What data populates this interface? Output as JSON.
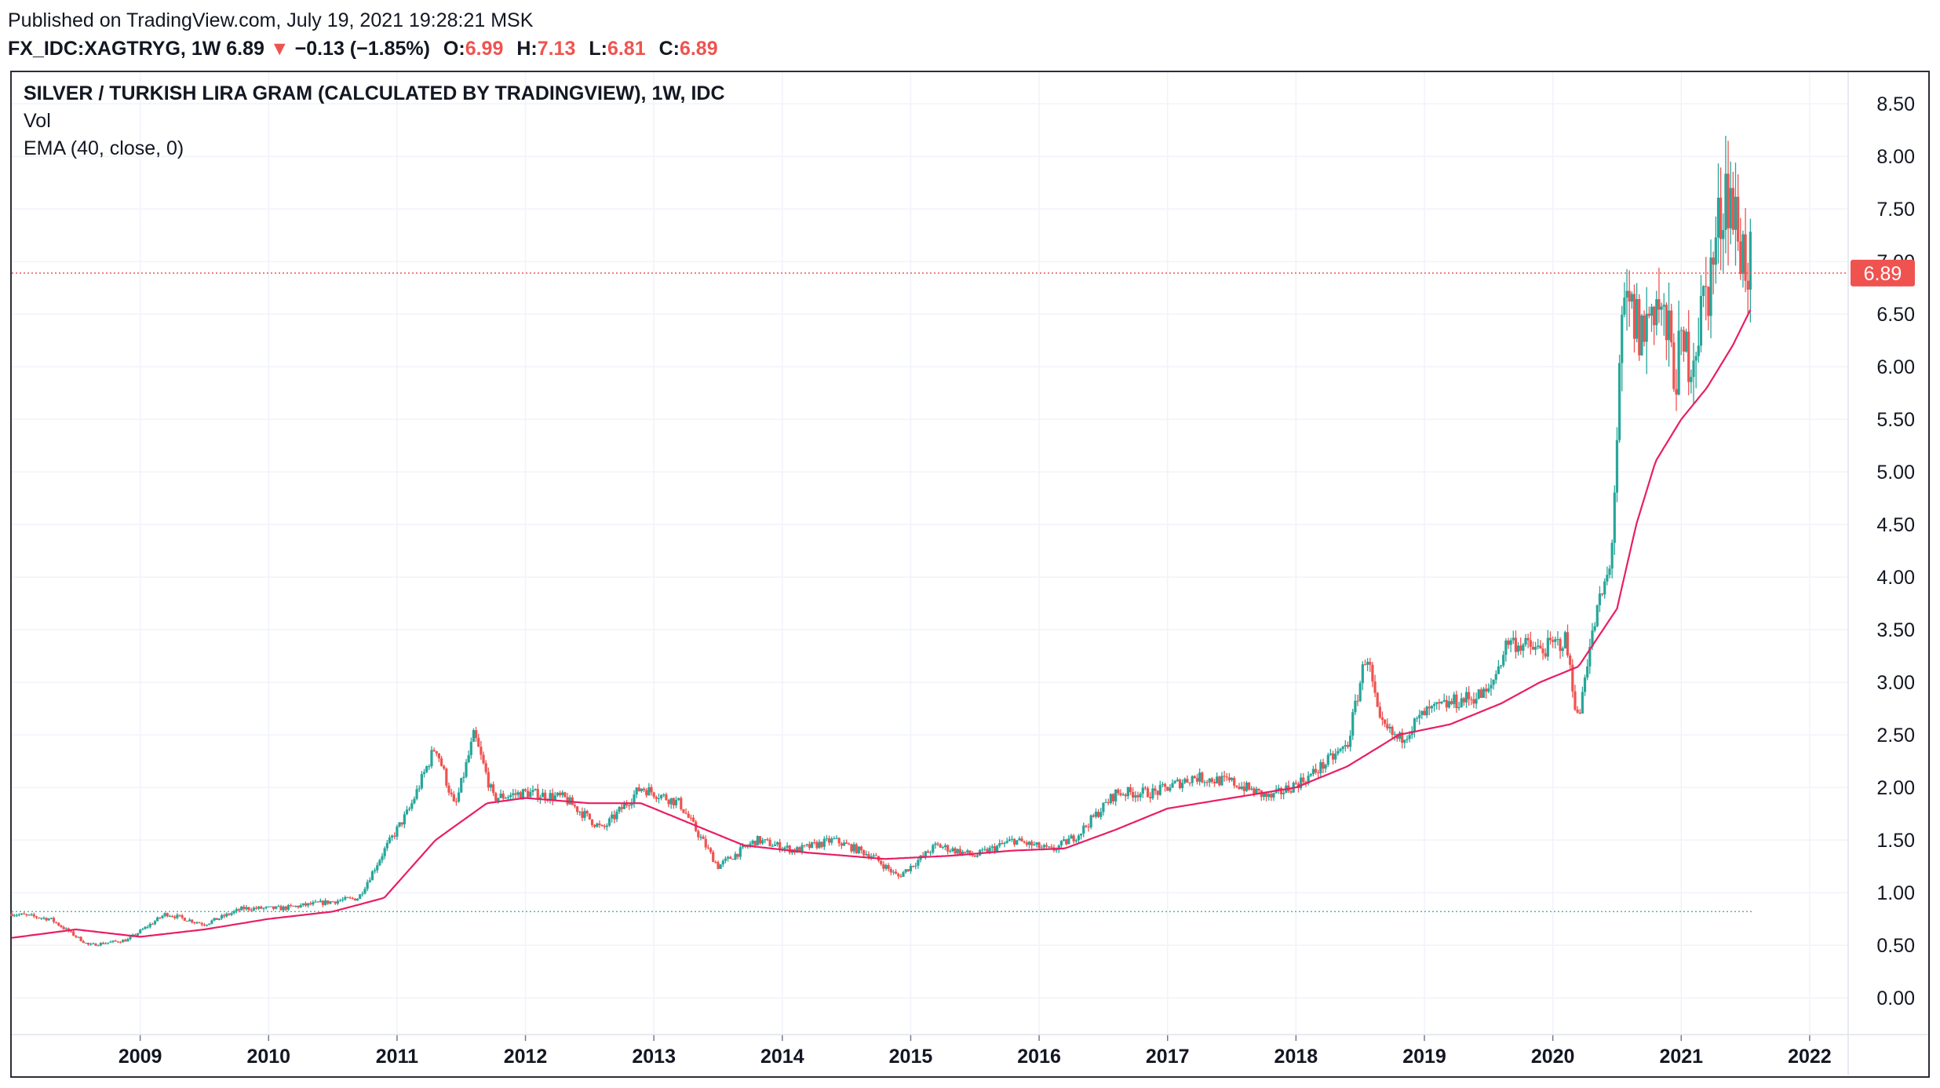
{
  "header": {
    "published": "Published on TradingView.com, July 19, 2021 19:28:21 MSK",
    "symbol": "FX_IDC:XAGTRYG, 1W",
    "last": "6.89",
    "change_arrow": "▼",
    "change": "−0.13 (−1.85%)",
    "open_label": "O:",
    "open": "6.99",
    "high_label": "H:",
    "high": "7.13",
    "low_label": "L:",
    "low": "6.81",
    "close_label": "C:",
    "close": "6.89"
  },
  "legend": {
    "title": "SILVER / TURKISH LIRA GRAM (CALCULATED BY TRADINGVIEW), 1W, IDC",
    "vol": "Vol",
    "ema": "EMA (40, close, 0)"
  },
  "colors": {
    "up": "#26a69a",
    "down": "#ef5350",
    "ema": "#e91e63",
    "grid": "#f0f3fa",
    "last_price": "#ef5350",
    "vol_line": "#26a69a"
  },
  "chart_data": {
    "type": "line",
    "title": "SILVER / TURKISH LIRA GRAM (CALCULATED BY TRADINGVIEW), 1W, IDC",
    "y_ticks": [
      "8.50",
      "8.00",
      "7.50",
      "7.00",
      "6.50",
      "6.00",
      "5.50",
      "5.00",
      "4.50",
      "4.00",
      "3.50",
      "3.00",
      "2.50",
      "2.00",
      "1.50",
      "1.00",
      "0.50",
      "0.00"
    ],
    "x_ticks": [
      "2009",
      "2010",
      "2011",
      "2012",
      "2013",
      "2014",
      "2015",
      "2016",
      "2017",
      "2018",
      "2019",
      "2020",
      "2021",
      "2022"
    ],
    "ylim": [
      -0.35,
      8.8
    ],
    "xlim": [
      2008.0,
      2022.3
    ],
    "grid": true,
    "last_price_label": "6.89",
    "last_price": 6.89,
    "volume_level": 0.82,
    "series": [
      {
        "kind": "price",
        "x": [
          2008.0,
          2008.3,
          2008.6,
          2008.9,
          2009.2,
          2009.5,
          2009.8,
          2010.1,
          2010.4,
          2010.7,
          2010.9,
          2011.1,
          2011.3,
          2011.45,
          2011.6,
          2011.75,
          2012.0,
          2012.3,
          2012.6,
          2012.9,
          2013.2,
          2013.5,
          2013.8,
          2014.1,
          2014.4,
          2014.7,
          2014.9,
          2015.2,
          2015.5,
          2015.8,
          2016.1,
          2016.3,
          2016.6,
          2016.9,
          2017.2,
          2017.5,
          2017.8,
          2018.1,
          2018.4,
          2018.55,
          2018.65,
          2018.8,
          2019.0,
          2019.2,
          2019.5,
          2019.65,
          2019.9,
          2020.1,
          2020.2,
          2020.25,
          2020.35,
          2020.45,
          2020.55,
          2020.6,
          2020.7,
          2020.8,
          2020.95,
          2021.1,
          2021.25,
          2021.35,
          2021.45,
          2021.55
        ],
        "y": [
          0.8,
          0.75,
          0.5,
          0.55,
          0.8,
          0.7,
          0.85,
          0.85,
          0.9,
          0.95,
          1.4,
          1.8,
          2.4,
          1.8,
          2.5,
          1.9,
          1.95,
          1.9,
          1.6,
          2.0,
          1.85,
          1.25,
          1.5,
          1.4,
          1.5,
          1.35,
          1.15,
          1.45,
          1.35,
          1.5,
          1.4,
          1.55,
          1.95,
          1.95,
          2.1,
          2.05,
          1.9,
          2.1,
          2.4,
          3.3,
          2.6,
          2.45,
          2.7,
          2.8,
          2.9,
          3.4,
          3.3,
          3.4,
          2.6,
          3.1,
          3.7,
          4.1,
          6.5,
          6.5,
          6.3,
          6.7,
          6.0,
          6.2,
          7.0,
          7.8,
          7.2,
          6.89
        ]
      },
      {
        "kind": "ema",
        "name": "EMA (40, close, 0)",
        "x": [
          2008.0,
          2008.5,
          2009.0,
          2009.5,
          2010.0,
          2010.5,
          2010.9,
          2011.3,
          2011.7,
          2012.0,
          2012.5,
          2012.9,
          2013.3,
          2013.7,
          2014.2,
          2014.8,
          2015.3,
          2015.8,
          2016.2,
          2016.6,
          2017.0,
          2017.5,
          2018.0,
          2018.4,
          2018.8,
          2019.2,
          2019.6,
          2019.9,
          2020.2,
          2020.5,
          2020.65,
          2020.8,
          2021.0,
          2021.2,
          2021.4,
          2021.55
        ],
        "y": [
          0.57,
          0.65,
          0.58,
          0.65,
          0.75,
          0.82,
          0.95,
          1.5,
          1.85,
          1.9,
          1.85,
          1.85,
          1.65,
          1.45,
          1.38,
          1.32,
          1.35,
          1.4,
          1.42,
          1.6,
          1.8,
          1.9,
          2.0,
          2.2,
          2.5,
          2.6,
          2.8,
          3.0,
          3.15,
          3.7,
          4.5,
          5.1,
          5.5,
          5.8,
          6.2,
          6.57
        ]
      }
    ]
  }
}
